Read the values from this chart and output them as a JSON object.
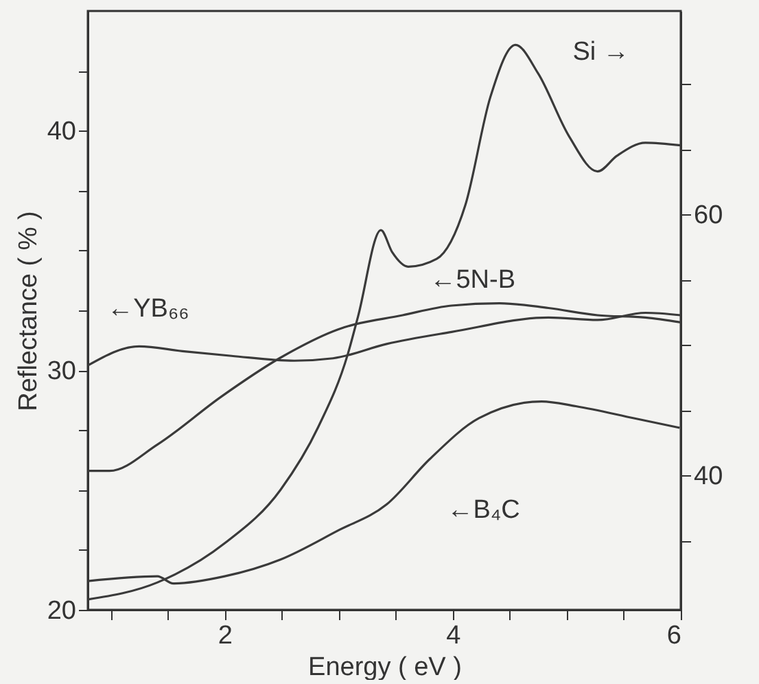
{
  "chart_data": {
    "type": "line",
    "xlabel": "Energy   ( eV )",
    "ylabel": "Reflectance ( % )",
    "xlim": [
      0.8,
      6
    ],
    "xticks": [
      {
        "value": 1,
        "label": null
      },
      {
        "value": 1.5,
        "label": null
      },
      2,
      {
        "value": 2.5,
        "label": null
      },
      {
        "value": 3,
        "label": null
      },
      {
        "value": 3.5,
        "label": null
      },
      4,
      {
        "value": 4.5,
        "label": null
      },
      {
        "value": 5,
        "label": null
      },
      {
        "value": 5.5,
        "label": null
      },
      6
    ],
    "ylim": [
      20,
      45
    ],
    "yticks": [
      20,
      {
        "value": 22.5,
        "label": null
      },
      {
        "value": 25,
        "label": null
      },
      {
        "value": 27.5,
        "label": null
      },
      30,
      {
        "value": 32.5,
        "label": null
      },
      {
        "value": 35,
        "label": null
      },
      {
        "value": 37.5,
        "label": null
      },
      40,
      {
        "value": 42.5,
        "label": null
      }
    ],
    "y2lim": [
      29.7,
      75.6
    ],
    "y2ticks": [
      {
        "value": 35,
        "label": null
      },
      40,
      {
        "value": 45,
        "label": null
      },
      {
        "value": 50,
        "label": null
      },
      {
        "value": 55,
        "label": null
      },
      60,
      {
        "value": 65,
        "label": null
      },
      {
        "value": 70,
        "label": null
      }
    ],
    "grid": false,
    "legend": false,
    "marker": "none",
    "line_style": "solid",
    "series": [
      {
        "name": "Si →",
        "color": "#3a3a3a",
        "axis": "y2",
        "x": [
          0.8,
          1.41,
          2.0,
          2.49,
          2.82,
          3.08,
          3.17,
          3.37,
          3.47,
          3.61,
          3.86,
          4.11,
          4.33,
          4.55,
          4.75,
          5.02,
          5.27,
          5.44,
          5.69,
          6.0
        ],
        "values": [
          30.5,
          31.8,
          34.8,
          38.9,
          43.7,
          49.3,
          52.2,
          58.8,
          57.1,
          56.0,
          56.6,
          60.7,
          69.0,
          73.0,
          70.8,
          66.0,
          63.3,
          64.5,
          65.5,
          65.3
        ]
      },
      {
        "name": "←5N-B",
        "color": "#3a3a3a",
        "x": [
          0.8,
          0.99,
          1.41,
          1.97,
          2.48,
          2.99,
          3.56,
          3.99,
          4.41,
          4.84,
          5.27,
          5.69,
          6.0
        ],
        "values": [
          25.8,
          25.8,
          26.9,
          28.9,
          30.5,
          31.7,
          32.3,
          32.7,
          32.8,
          32.6,
          32.3,
          32.2,
          32.0
        ]
      },
      {
        "name": "←YB₆₆",
        "color": "#3a3a3a",
        "x": [
          0.8,
          1.25,
          1.63,
          2.06,
          2.61,
          2.95,
          3.42,
          3.99,
          4.84,
          5.27,
          5.69,
          6.0
        ],
        "values": [
          30.2,
          31.0,
          30.8,
          30.6,
          30.4,
          30.5,
          31.1,
          31.6,
          32.2,
          32.1,
          32.4,
          32.3
        ]
      },
      {
        "name": "←B₄C",
        "color": "#3a3a3a",
        "x": [
          0.8,
          1.41,
          1.55,
          2.0,
          2.49,
          2.99,
          3.42,
          3.8,
          4.23,
          4.78,
          5.08,
          5.59,
          5.99
        ],
        "values": [
          21.2,
          21.4,
          21.1,
          21.4,
          22.1,
          23.3,
          24.4,
          26.3,
          28.0,
          28.7,
          28.5,
          28.0,
          27.6
        ]
      }
    ]
  }
}
